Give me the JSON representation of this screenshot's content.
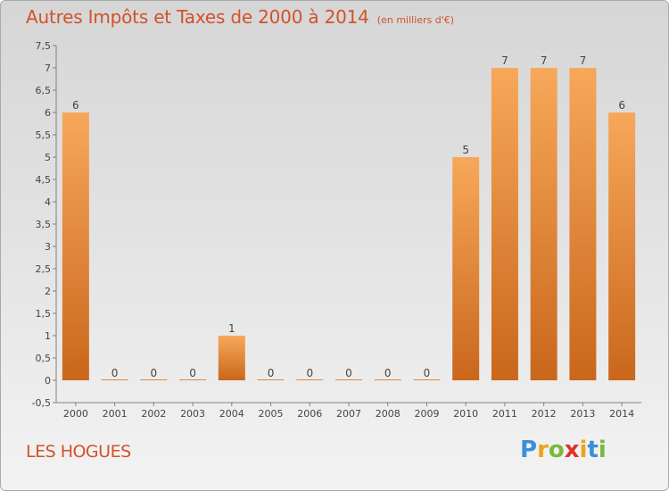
{
  "header": {
    "title": "Autres Impôts et Taxes de 2000 à 2014",
    "unit": "(en milliers d'€)"
  },
  "footer": {
    "location": "LES HOGUES",
    "brand": {
      "letters": [
        "P",
        "r",
        "o",
        "x",
        "i",
        "t",
        "i"
      ],
      "colors": [
        "#3b8fd8",
        "#f0a21b",
        "#7bb83a",
        "#e0302a",
        "#f0a21b",
        "#3b8fd8",
        "#7bb83a"
      ]
    }
  },
  "colors": {
    "title": "#d2522a",
    "bar_light": "#f7a85a",
    "bar_dark": "#c9671c",
    "axis": "#808080",
    "text": "#444444"
  },
  "chart_data": {
    "type": "bar",
    "title": "Autres Impôts et Taxes de 2000 à 2014",
    "categories": [
      "2000",
      "2001",
      "2002",
      "2003",
      "2004",
      "2005",
      "2006",
      "2007",
      "2008",
      "2009",
      "2010",
      "2011",
      "2012",
      "2013",
      "2014"
    ],
    "values": [
      6,
      0,
      0,
      0,
      1,
      0,
      0,
      0,
      0,
      0,
      5,
      7,
      7,
      7,
      6
    ],
    "data_labels": [
      "6",
      "0",
      "0",
      "0",
      "1",
      "0",
      "0",
      "0",
      "0",
      "0",
      "5",
      "7",
      "7",
      "7",
      "6"
    ],
    "ylim": [
      -0.5,
      7.5
    ],
    "yticks": [
      "-0,5",
      "0",
      "0,5",
      "1",
      "1,5",
      "2",
      "2,5",
      "3",
      "3,5",
      "4",
      "4,5",
      "5",
      "5,5",
      "6",
      "6,5",
      "7",
      "7,5"
    ],
    "ytick_values": [
      -0.5,
      0,
      0.5,
      1,
      1.5,
      2,
      2.5,
      3,
      3.5,
      4,
      4.5,
      5,
      5.5,
      6,
      6.5,
      7,
      7.5
    ],
    "grid": false,
    "legend": "none"
  }
}
